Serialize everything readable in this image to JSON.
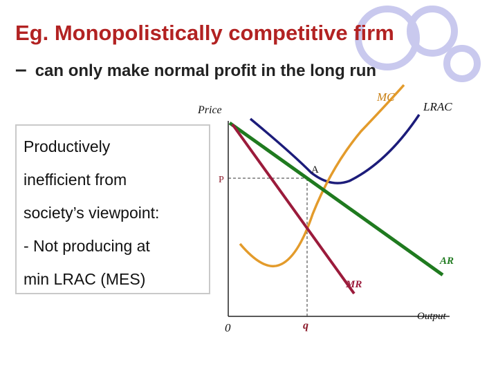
{
  "header": {
    "title": "Eg. Monopolistically competitive firm",
    "subtitle_dash": "–",
    "subtitle": "can only make normal profit in the long run"
  },
  "note": {
    "lines": [
      "Productively",
      "inefficient from",
      "society’s viewpoint:",
      "- Not producing at",
      "min LRAC (MES)"
    ]
  },
  "diagram": {
    "y_axis_label": "Price",
    "x_axis_label": "Output",
    "origin_label": "0",
    "price_label": "P",
    "quantity_label": "q",
    "point_label": "A",
    "curves": {
      "mc": {
        "label": "MC",
        "color": "#e39b2b"
      },
      "lrac": {
        "label": "LRAC",
        "color": "#1c1c7a"
      },
      "ar": {
        "label": "AR",
        "color": "#1f7a1f"
      },
      "mr": {
        "label": "MR",
        "color": "#9b1b3b"
      }
    }
  },
  "colors": {
    "title": "#b22222",
    "decor_circles": "#c9c9ee"
  }
}
